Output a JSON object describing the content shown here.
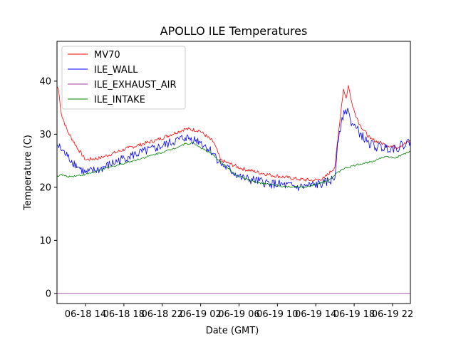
{
  "chart_data": {
    "type": "line",
    "title": "APOLLO ILE Temperatures",
    "xlabel": "Date (GMT)",
    "ylabel": "Temperature (C)",
    "x_units": "hours since 06-18 14:00 GMT",
    "xlim": [
      -2.97,
      33.86
    ],
    "ylim": [
      -1.9,
      47.5
    ],
    "x_ticks": [
      {
        "value": 0,
        "label": "06-18 14"
      },
      {
        "value": 4,
        "label": "06-18 18"
      },
      {
        "value": 8,
        "label": "06-18 22"
      },
      {
        "value": 12,
        "label": "06-19 02"
      },
      {
        "value": 16,
        "label": "06-19 06"
      },
      {
        "value": 20,
        "label": "06-19 10"
      },
      {
        "value": 24,
        "label": "06-19 14"
      },
      {
        "value": 28,
        "label": "06-19 18"
      },
      {
        "value": 32,
        "label": "06-19 22"
      }
    ],
    "y_ticks": [
      {
        "value": 0,
        "label": "0"
      },
      {
        "value": 10,
        "label": "10"
      },
      {
        "value": 20,
        "label": "20"
      },
      {
        "value": 30,
        "label": "30"
      },
      {
        "value": 40,
        "label": "40"
      }
    ],
    "grid": false,
    "legend_position": "top-left",
    "series": [
      {
        "name": "MV70",
        "color": "#ff0000",
        "x": [
          -2.97,
          -2.82,
          -2.52,
          -1.86,
          -0.74,
          0.0,
          1.48,
          4.45,
          7.42,
          10.39,
          11.88,
          13.36,
          14.1,
          16.33,
          19.3,
          22.27,
          23.76,
          24.87,
          25.99,
          26.58,
          26.88,
          27.17,
          27.39,
          27.84,
          28.58,
          29.7,
          31.18,
          32.37,
          33.86
        ],
        "values": [
          39.0,
          38.5,
          33.8,
          30.5,
          27.1,
          25.2,
          25.5,
          27.4,
          28.9,
          31.0,
          30.7,
          28.5,
          25.1,
          23.5,
          22.3,
          21.5,
          21.3,
          21.7,
          23.8,
          33.8,
          38.5,
          36.8,
          39.2,
          35.2,
          31.8,
          29.1,
          28.1,
          27.5,
          28.7
        ]
      },
      {
        "name": "ILE_WALL",
        "color": "#0000ff",
        "x": [
          -2.97,
          -1.86,
          -0.74,
          0.0,
          1.48,
          4.45,
          7.42,
          10.39,
          11.88,
          13.36,
          14.1,
          16.33,
          19.3,
          22.27,
          24.87,
          25.99,
          26.28,
          26.73,
          27.02,
          27.32,
          27.62,
          28.21,
          29.33,
          30.44,
          32.37,
          33.86
        ],
        "values": [
          28.0,
          25.8,
          23.8,
          22.7,
          23.4,
          25.8,
          27.4,
          29.4,
          28.7,
          26.4,
          24.4,
          21.7,
          20.7,
          20.0,
          20.7,
          21.7,
          28.5,
          33.2,
          33.8,
          34.9,
          32.5,
          31.1,
          28.5,
          27.5,
          27.4,
          28.7
        ]
      },
      {
        "name": "ILE_EXHAUST_AIR",
        "color": "#9b3e9b",
        "x": [
          -2.97,
          33.86
        ],
        "values": [
          0.0,
          0.0
        ]
      },
      {
        "name": "ILE_INTAKE",
        "color": "#008000",
        "x": [
          -2.97,
          -2.6,
          -1.86,
          0.0,
          2.97,
          5.94,
          8.91,
          10.39,
          11.28,
          13.36,
          15.59,
          17.82,
          20.79,
          23.01,
          25.24,
          26.73,
          28.21,
          29.7,
          31.18,
          32.29,
          33.86
        ],
        "values": [
          22.0,
          22.4,
          22.0,
          22.4,
          24.0,
          25.5,
          27.1,
          28.2,
          28.3,
          26.0,
          22.4,
          20.9,
          20.1,
          20.0,
          21.2,
          23.4,
          24.2,
          24.8,
          25.8,
          25.5,
          26.8
        ]
      }
    ]
  }
}
